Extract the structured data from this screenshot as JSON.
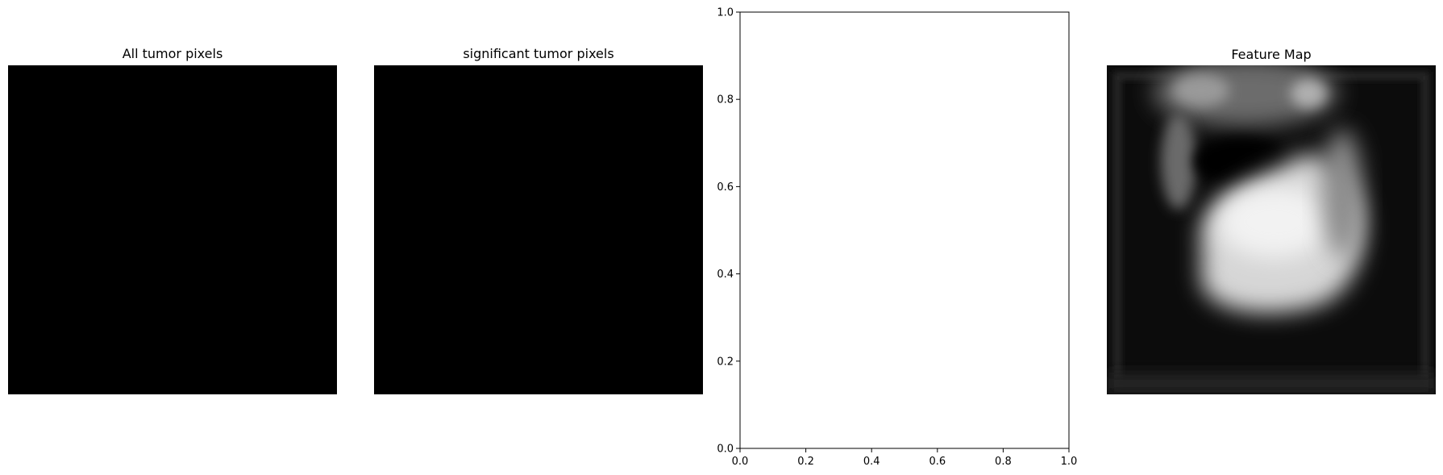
{
  "panels": [
    {
      "title": "All tumor pixels"
    },
    {
      "title": "significant tumor pixels"
    },
    {
      "title": ""
    },
    {
      "title": "Feature Map"
    }
  ],
  "chart_data": [
    {
      "type": "heatmap",
      "title": "All tumor pixels",
      "colormap": "gray",
      "values": "all zero (uniform black)"
    },
    {
      "type": "heatmap",
      "title": "significant tumor pixels",
      "colormap": "gray",
      "values": "all zero (uniform black)"
    },
    {
      "type": "scatter",
      "title": "",
      "xlabel": "",
      "ylabel": "",
      "xlim": [
        0,
        1
      ],
      "ylim": [
        0,
        1
      ],
      "xticks": [
        "0.0",
        "0.2",
        "0.4",
        "0.6",
        "0.8",
        "1.0"
      ],
      "yticks": [
        "0.0",
        "0.2",
        "0.4",
        "0.6",
        "0.8",
        "1.0"
      ],
      "x": [],
      "y": [],
      "grid": false
    },
    {
      "type": "heatmap",
      "title": "Feature Map",
      "colormap": "gray"
    }
  ]
}
